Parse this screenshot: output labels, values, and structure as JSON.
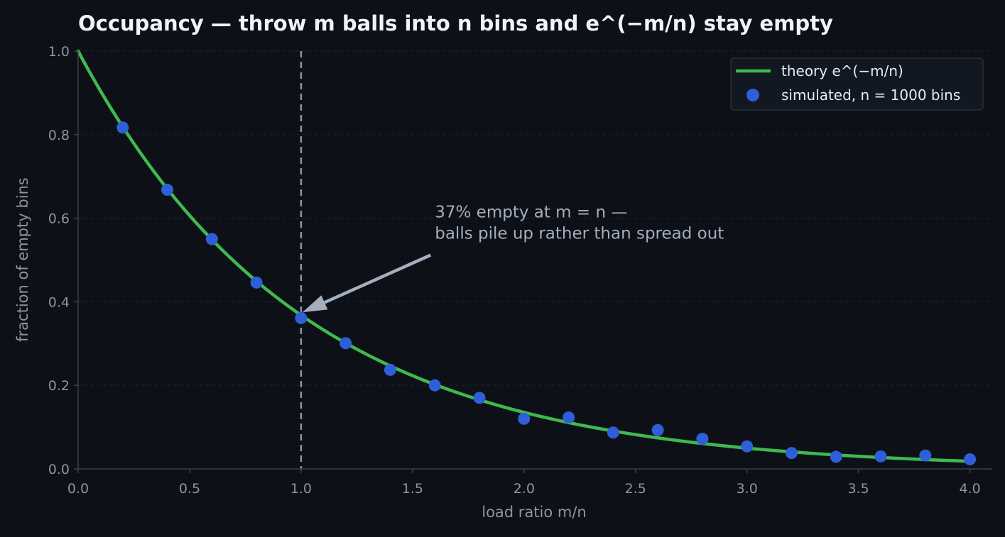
{
  "chart_data": {
    "type": "line",
    "title": "Occupancy — throw m balls into n bins and e^(−m/n) stay empty",
    "xlabel": "load ratio m/n",
    "ylabel": "fraction of empty bins",
    "xlim": [
      0.0,
      4.1
    ],
    "ylim": [
      0.0,
      1.0
    ],
    "xticks": [
      0.0,
      0.5,
      1.0,
      1.5,
      2.0,
      2.5,
      3.0,
      3.5,
      4.0
    ],
    "xtick_labels": [
      "0.0",
      "0.5",
      "1.0",
      "1.5",
      "2.0",
      "2.5",
      "3.0",
      "3.5",
      "4.0"
    ],
    "yticks": [
      0.0,
      0.2,
      0.4,
      0.6,
      0.8,
      1.0
    ],
    "ytick_labels": [
      "0.0",
      "0.2",
      "0.4",
      "0.6",
      "0.8",
      "1.0"
    ],
    "grid": "horizontal dashed",
    "legend_position": "top-right",
    "series": [
      {
        "name": "theory e^(−m/n)",
        "kind": "line",
        "color": "#3fb950",
        "function": "exp(-x)",
        "x_range": [
          0.0,
          4.0
        ]
      },
      {
        "name": "simulated, n = 1000 bins",
        "kind": "scatter",
        "color": "#2f5fd8",
        "x": [
          0.2,
          0.4,
          0.6,
          0.8,
          1.0,
          1.2,
          1.4,
          1.6,
          1.8,
          2.0,
          2.2,
          2.4,
          2.6,
          2.8,
          3.0,
          3.2,
          3.4,
          3.6,
          3.8,
          4.0
        ],
        "y": [
          0.817,
          0.668,
          0.55,
          0.446,
          0.361,
          0.301,
          0.237,
          0.2,
          0.17,
          0.12,
          0.123,
          0.087,
          0.093,
          0.072,
          0.054,
          0.038,
          0.029,
          0.03,
          0.032,
          0.023
        ]
      }
    ],
    "reference_line": {
      "x": 1.0,
      "style": "dashed",
      "color": "#8b95a3"
    },
    "annotation": {
      "lines": [
        "37% empty at m = n —",
        "balls pile up rather than spread out"
      ],
      "text_at": [
        1.6,
        0.6
      ],
      "arrow_to": [
        1.0,
        0.368
      ],
      "color": "#a3afbf"
    }
  },
  "colors": {
    "background": "#0d1017",
    "legend_background": "#121821",
    "legend_border": "#30363d",
    "axis": "#3a414b",
    "grid": "#1c222b"
  }
}
